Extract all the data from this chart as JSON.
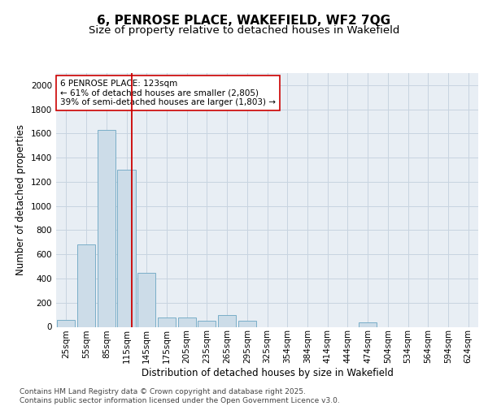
{
  "title_line1": "6, PENROSE PLACE, WAKEFIELD, WF2 7QG",
  "title_line2": "Size of property relative to detached houses in Wakefield",
  "xlabel": "Distribution of detached houses by size in Wakefield",
  "ylabel": "Number of detached properties",
  "categories": [
    "25sqm",
    "55sqm",
    "85sqm",
    "115sqm",
    "145sqm",
    "175sqm",
    "205sqm",
    "235sqm",
    "265sqm",
    "295sqm",
    "325sqm",
    "354sqm",
    "384sqm",
    "414sqm",
    "444sqm",
    "474sqm",
    "504sqm",
    "534sqm",
    "564sqm",
    "594sqm",
    "624sqm"
  ],
  "values": [
    55,
    680,
    1630,
    1300,
    450,
    80,
    80,
    50,
    100,
    50,
    0,
    0,
    0,
    0,
    0,
    40,
    0,
    0,
    0,
    0,
    0
  ],
  "bar_color": "#ccdce8",
  "bar_edge_color": "#7aaec8",
  "vline_color": "#cc0000",
  "annotation_text": "6 PENROSE PLACE: 123sqm\n← 61% of detached houses are smaller (2,805)\n39% of semi-detached houses are larger (1,803) →",
  "annotation_box_color": "#ffffff",
  "annotation_box_edge": "#cc0000",
  "ylim": [
    0,
    2100
  ],
  "yticks": [
    0,
    200,
    400,
    600,
    800,
    1000,
    1200,
    1400,
    1600,
    1800,
    2000
  ],
  "grid_color": "#c8d4e0",
  "background_color": "#e8eef4",
  "footer_text": "Contains HM Land Registry data © Crown copyright and database right 2025.\nContains public sector information licensed under the Open Government Licence v3.0.",
  "title_fontsize": 11,
  "subtitle_fontsize": 9.5,
  "axis_label_fontsize": 8.5,
  "tick_fontsize": 7.5,
  "annotation_fontsize": 7.5,
  "footer_fontsize": 6.5,
  "vline_pos": 3.27
}
